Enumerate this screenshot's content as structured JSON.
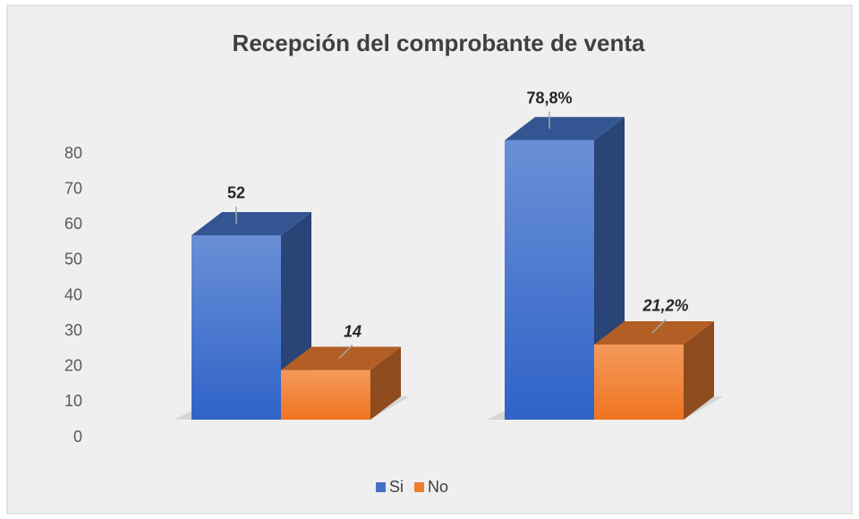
{
  "chart_data": {
    "type": "bar3d",
    "title": "Recepción del comprobante de venta",
    "categories": [
      null,
      null
    ],
    "series": [
      {
        "name": "Si",
        "color": "#4472c4",
        "values": [
          52,
          78.8
        ],
        "value_labels": [
          "52",
          "78,8%"
        ]
      },
      {
        "name": "No",
        "color": "#ed7d31",
        "values": [
          14,
          21.2
        ],
        "value_labels": [
          "14",
          "21,2%"
        ]
      }
    ],
    "ylim": [
      0,
      80
    ],
    "yticks": [
      0,
      10,
      20,
      30,
      40,
      50,
      60,
      70,
      80
    ],
    "grid": false,
    "legend": "bottom"
  }
}
